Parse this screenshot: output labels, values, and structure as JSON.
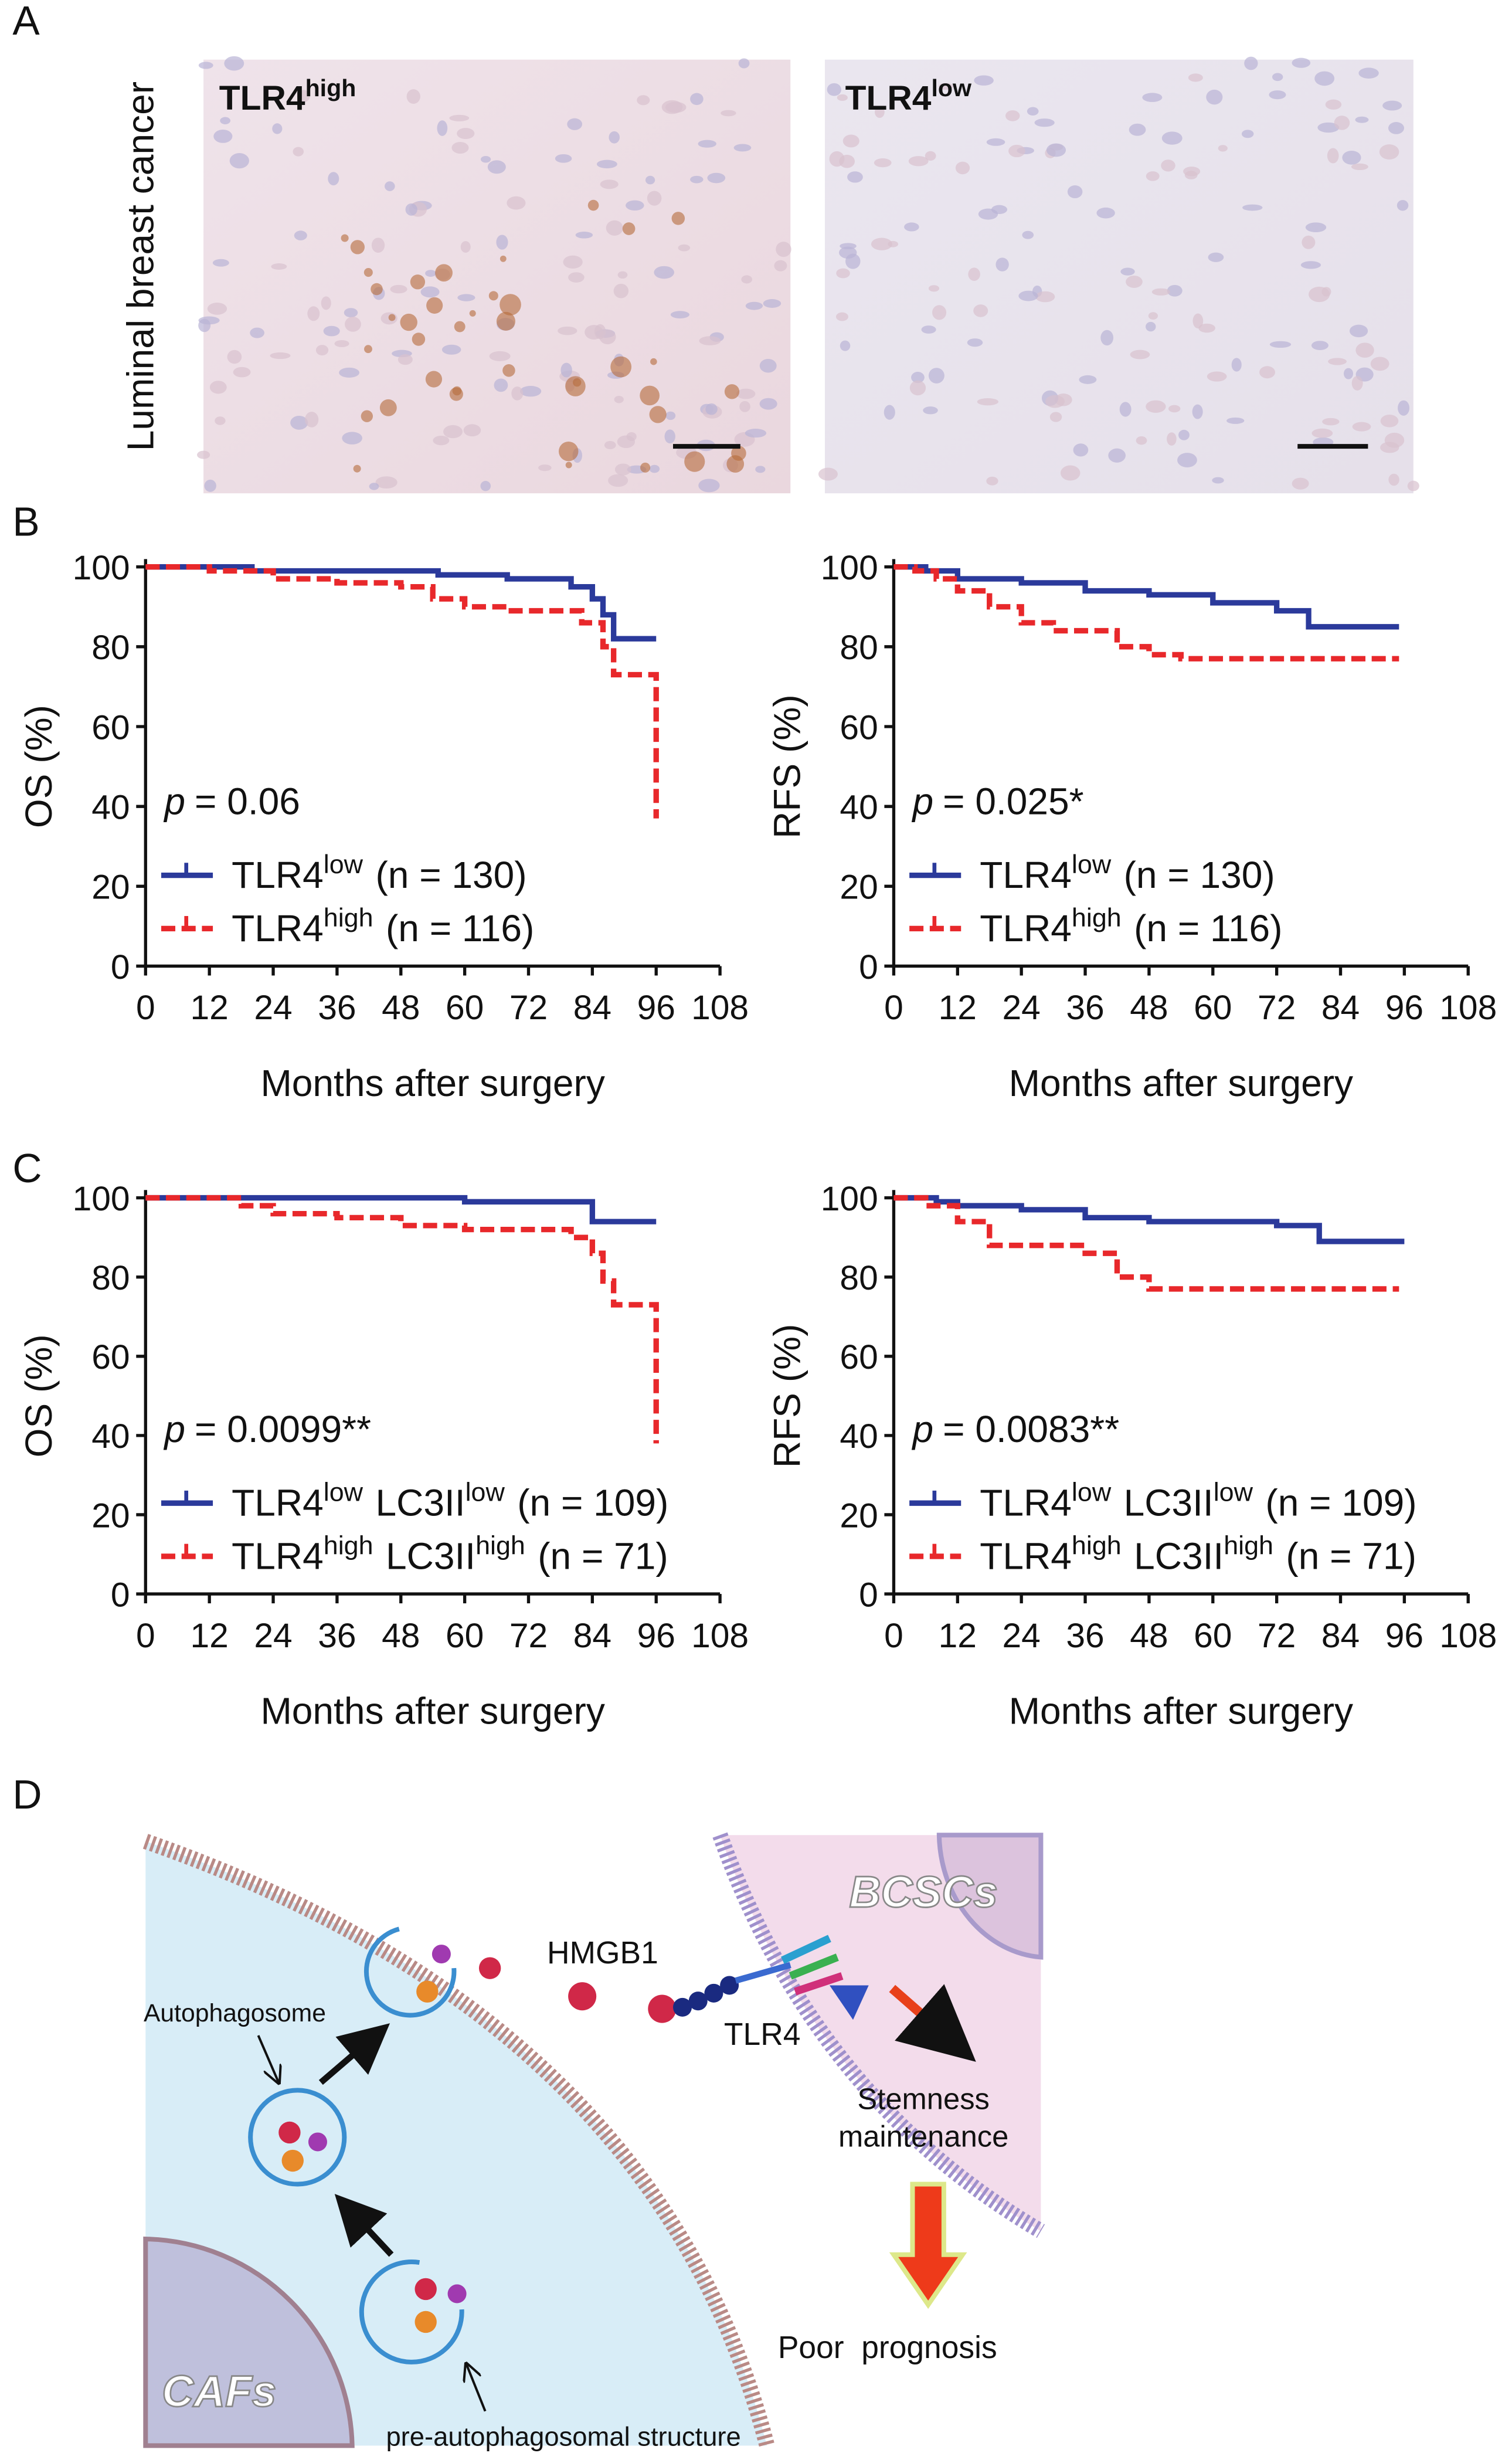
{
  "panel_labels": [
    "A",
    "B",
    "C",
    "D"
  ],
  "panel_a": {
    "side_label": "Luminal breast cancer",
    "images": [
      [
        "TLR4",
        "high"
      ],
      [
        "TLR4",
        "low"
      ]
    ]
  },
  "chart_data": [
    {
      "type": "step",
      "ylabel": "OS (%)",
      "xlabel": "Months after surgery",
      "annotation": [
        "p",
        "= 0.06"
      ],
      "xlim": [
        0,
        108
      ],
      "ylim": [
        0,
        100
      ],
      "xticks": [
        0,
        12,
        24,
        36,
        48,
        60,
        72,
        84,
        96,
        108
      ],
      "yticks": [
        0,
        20,
        40,
        60,
        80,
        100
      ],
      "series": [
        {
          "name": [
            "TLR4",
            "low",
            "(n = 130)"
          ],
          "color": "#2b3a9b",
          "dash": false,
          "x": [
            0,
            20,
            55,
            68,
            80,
            84,
            86,
            88,
            96
          ],
          "values": [
            100,
            99,
            98,
            97,
            95,
            92,
            88,
            82,
            82
          ]
        },
        {
          "name": [
            "TLR4",
            "high",
            "(n = 116)"
          ],
          "color": "#e8282b",
          "dash": true,
          "x": [
            0,
            12,
            24,
            36,
            48,
            54,
            60,
            68,
            82,
            86,
            88,
            96,
            96
          ],
          "values": [
            100,
            99,
            97,
            96,
            95,
            92,
            90,
            89,
            86,
            80,
            73,
            72,
            37
          ]
        }
      ]
    },
    {
      "type": "step",
      "ylabel": "RFS (%)",
      "xlabel": "Months after surgery",
      "annotation": [
        "p",
        "= 0.025*"
      ],
      "xlim": [
        0,
        108
      ],
      "ylim": [
        0,
        100
      ],
      "xticks": [
        0,
        12,
        24,
        36,
        48,
        60,
        72,
        84,
        96,
        108
      ],
      "yticks": [
        0,
        20,
        40,
        60,
        80,
        100
      ],
      "series": [
        {
          "name": [
            "TLR4",
            "low",
            "(n = 130)"
          ],
          "color": "#2b3a9b",
          "dash": false,
          "x": [
            0,
            6,
            12,
            24,
            36,
            48,
            60,
            72,
            78,
            95
          ],
          "values": [
            100,
            99,
            97,
            96,
            94,
            93,
            91,
            89,
            85,
            85
          ]
        },
        {
          "name": [
            "TLR4",
            "high",
            "(n = 116)"
          ],
          "color": "#e8282b",
          "dash": true,
          "x": [
            0,
            4,
            8,
            12,
            18,
            24,
            30,
            36,
            42,
            48,
            54,
            95
          ],
          "values": [
            100,
            99,
            97,
            94,
            90,
            86,
            84,
            84,
            80,
            78,
            77,
            77
          ]
        }
      ]
    },
    {
      "type": "step",
      "ylabel": "OS (%)",
      "xlabel": "Months after surgery",
      "annotation": [
        "p",
        "= 0.0099**"
      ],
      "xlim": [
        0,
        108
      ],
      "ylim": [
        0,
        100
      ],
      "xticks": [
        0,
        12,
        24,
        36,
        48,
        60,
        72,
        84,
        96,
        108
      ],
      "yticks": [
        0,
        20,
        40,
        60,
        80,
        100
      ],
      "series": [
        {
          "name": [
            "TLR4",
            "low",
            "LC3II",
            "low",
            "(n = 109)"
          ],
          "color": "#2b3a9b",
          "dash": false,
          "x": [
            0,
            60,
            84,
            96
          ],
          "values": [
            100,
            99,
            94,
            94
          ]
        },
        {
          "name": [
            "TLR4",
            "high",
            "LC3II",
            "high",
            "(n = 71)"
          ],
          "color": "#e8282b",
          "dash": true,
          "x": [
            0,
            18,
            24,
            36,
            48,
            60,
            80,
            84,
            86,
            88,
            96,
            96
          ],
          "values": [
            100,
            98,
            96,
            95,
            93,
            92,
            90,
            86,
            79,
            73,
            72,
            38
          ]
        }
      ]
    },
    {
      "type": "step",
      "ylabel": "RFS (%)",
      "xlabel": "Months after surgery",
      "annotation": [
        "p",
        "= 0.0083**"
      ],
      "xlim": [
        0,
        108
      ],
      "ylim": [
        0,
        100
      ],
      "xticks": [
        0,
        12,
        24,
        36,
        48,
        60,
        72,
        84,
        96,
        108
      ],
      "yticks": [
        0,
        20,
        40,
        60,
        80,
        100
      ],
      "series": [
        {
          "name": [
            "TLR4",
            "low",
            "LC3II",
            "low",
            "(n = 109)"
          ],
          "color": "#2b3a9b",
          "dash": false,
          "x": [
            0,
            8,
            12,
            24,
            36,
            48,
            72,
            80,
            96
          ],
          "values": [
            100,
            99,
            98,
            97,
            95,
            94,
            93,
            89,
            89
          ]
        },
        {
          "name": [
            "TLR4",
            "high",
            "LC3II",
            "high",
            "(n = 71)"
          ],
          "color": "#e8282b",
          "dash": true,
          "x": [
            0,
            6,
            12,
            18,
            36,
            42,
            48,
            95
          ],
          "values": [
            100,
            98,
            94,
            88,
            86,
            80,
            77,
            77
          ]
        }
      ]
    }
  ],
  "diagram": {
    "hmgb1": "HMGB1",
    "autophagosome": "Autophagosome",
    "tlr4": "TLR4",
    "bcscs": "BCSCs",
    "stemness": [
      "Stemness",
      "maintenance"
    ],
    "prognosis": "Poor  prognosis",
    "cafs": "CAFs",
    "pre": "pre-autophagosomal structure"
  }
}
